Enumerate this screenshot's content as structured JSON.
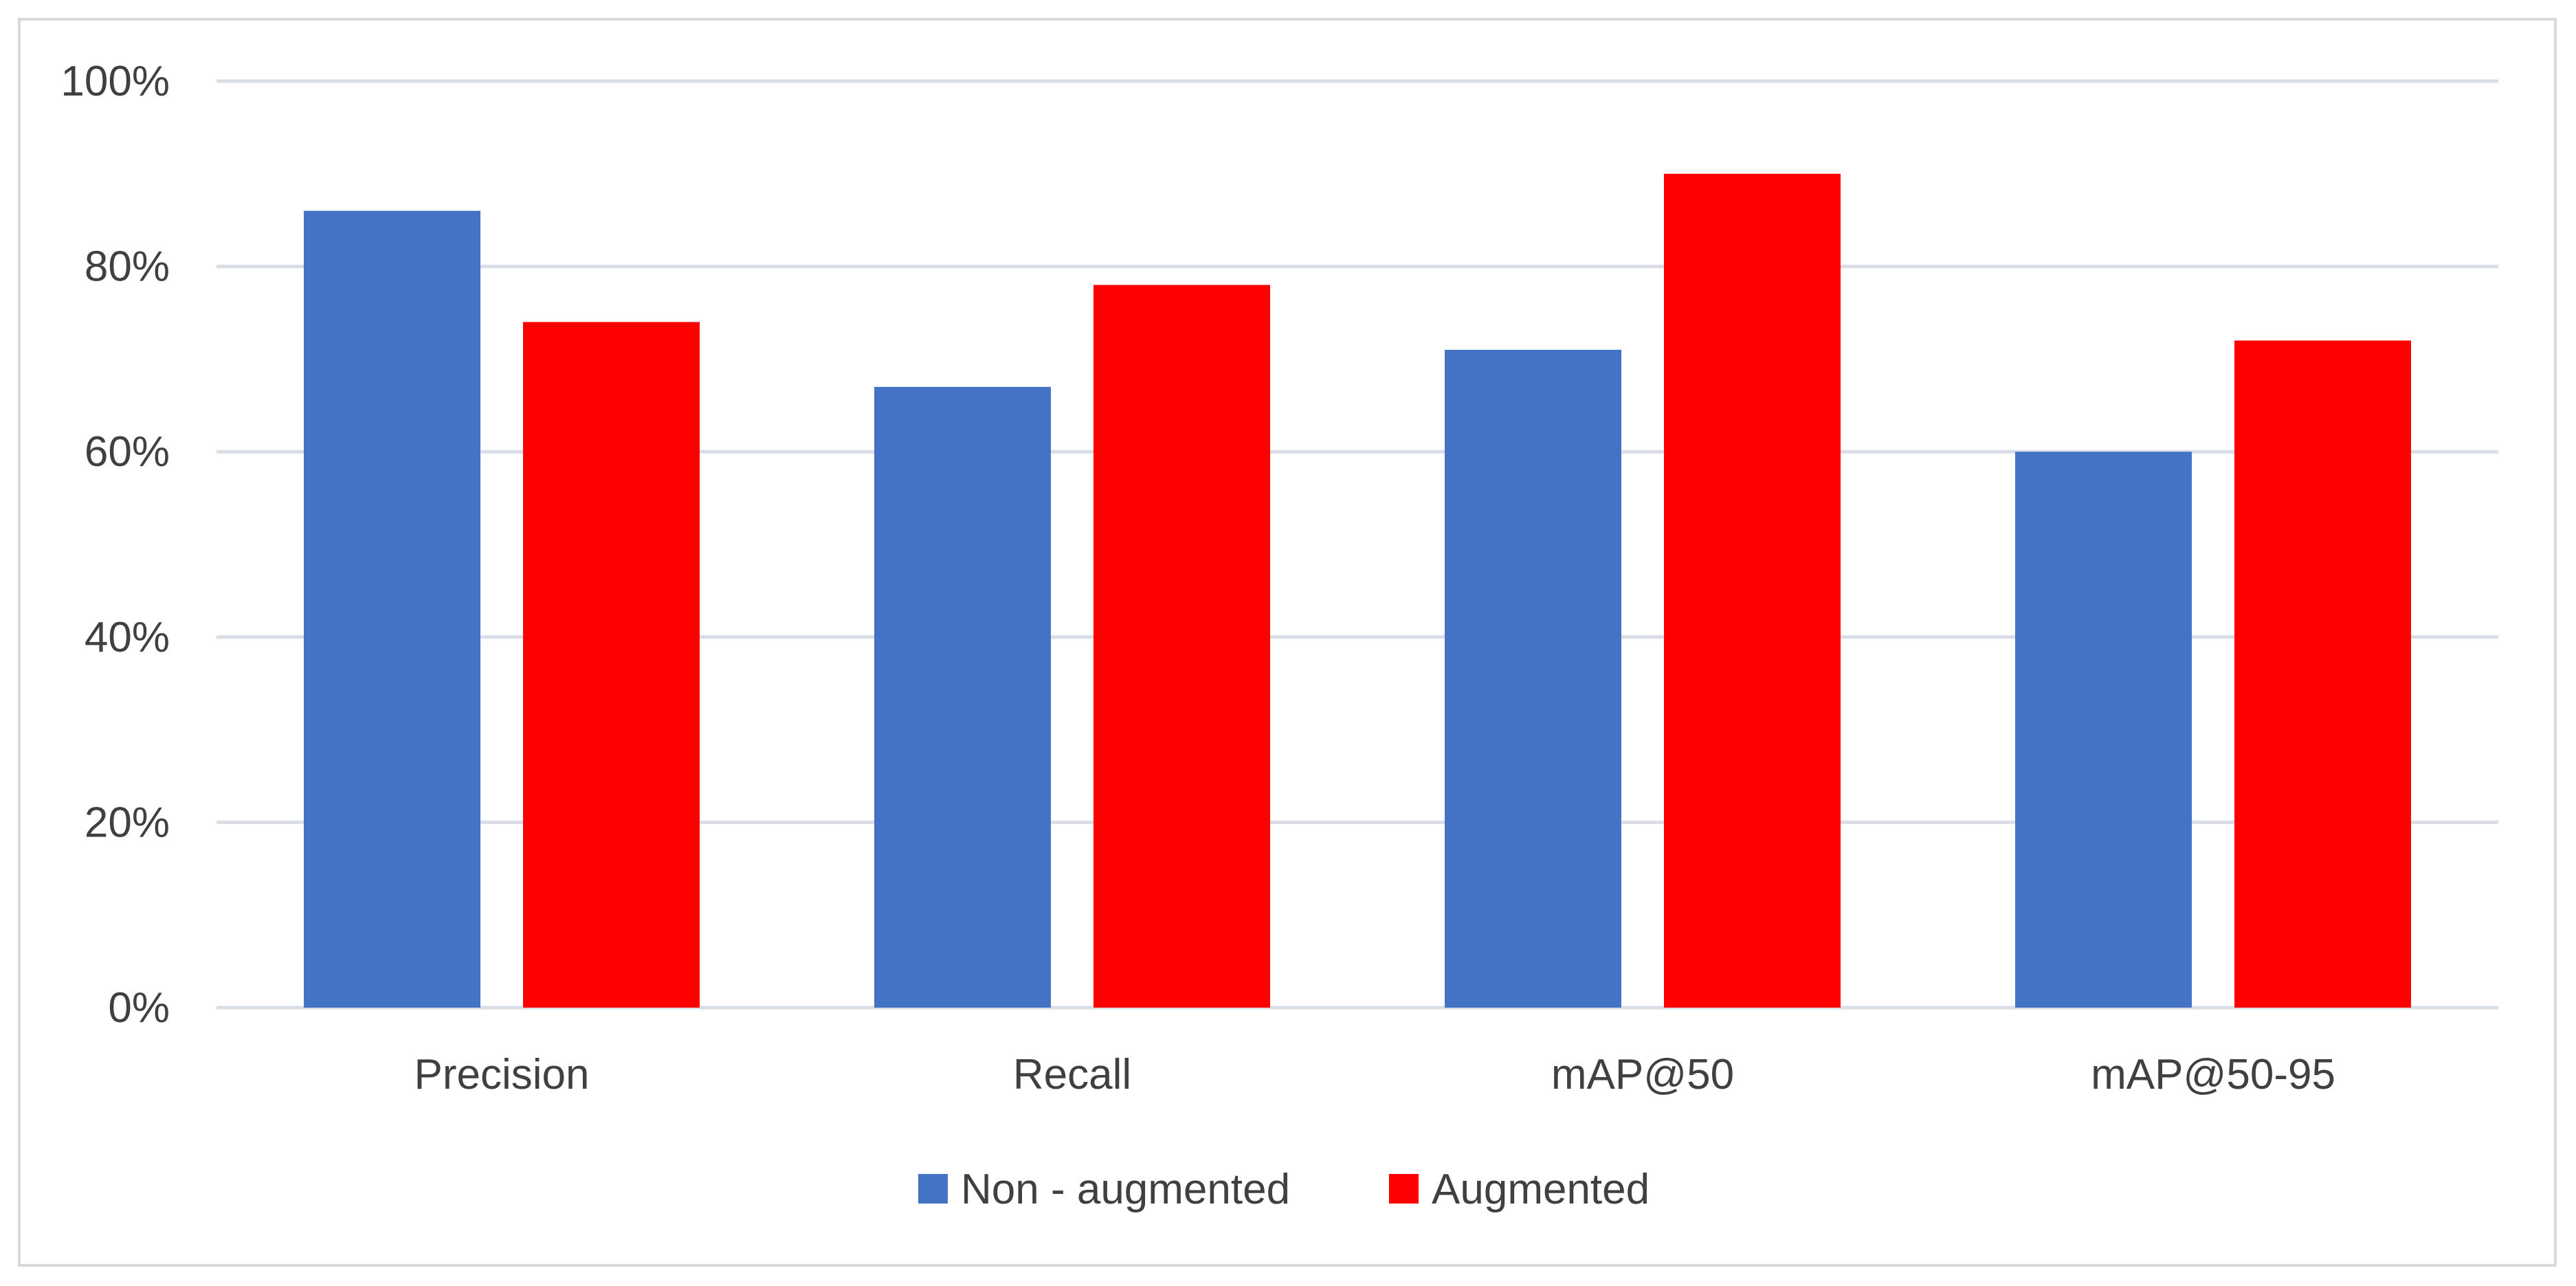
{
  "chart_data": {
    "type": "bar",
    "categories": [
      "Precision",
      "Recall",
      "mAP@50",
      "mAP@50-95"
    ],
    "series": [
      {
        "name": "Non - augmented",
        "color": "#4472c4",
        "values": [
          0.86,
          0.67,
          0.71,
          0.6
        ]
      },
      {
        "name": "Augmented",
        "color": "#ff0000",
        "values": [
          0.74,
          0.78,
          0.9,
          0.72
        ]
      }
    ],
    "y_ticks": [
      0,
      0.2,
      0.4,
      0.6,
      0.8,
      1.0
    ],
    "y_tick_labels": [
      "0%",
      "20%",
      "40%",
      "60%",
      "80%",
      "100%"
    ],
    "ylim": [
      0,
      1.0
    ],
    "grid": true,
    "grid_color": "#d9dee6",
    "legend_position": "bottom"
  }
}
